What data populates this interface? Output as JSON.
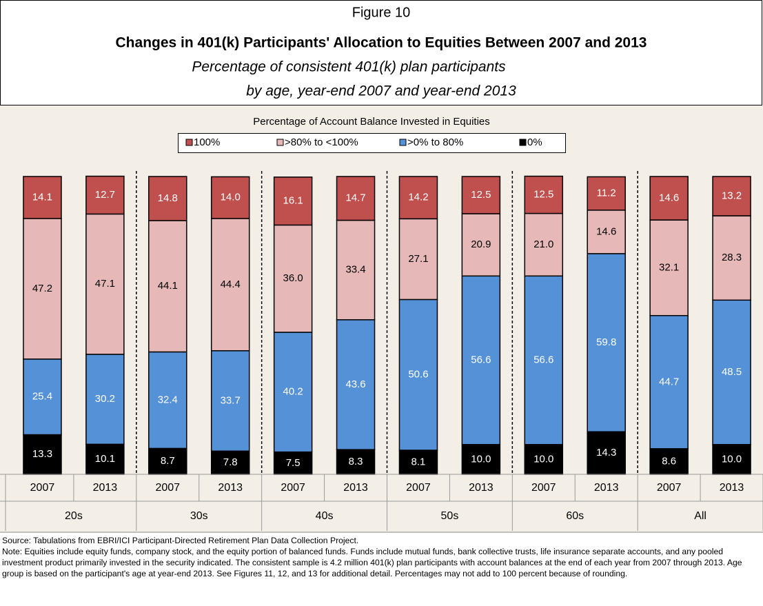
{
  "chart_data": {
    "type": "stacked_bar",
    "figure_label": "Figure 10",
    "title": "Changes in 401(k) Participants' Allocation to Equities Between 2007 and 2013",
    "subtitle": [
      "Percentage of consistent 401(k) plan participants",
      "by age, year-end 2007 and year-end 2013"
    ],
    "legend_title": "Percentage of Account Balance Invested in Equities",
    "categories": [
      "2007",
      "2013",
      "2007",
      "2013",
      "2007",
      "2013",
      "2007",
      "2013",
      "2007",
      "2013",
      "2007",
      "2013"
    ],
    "groups": [
      "20s",
      "30s",
      "40s",
      "50s",
      "60s",
      "All"
    ],
    "ylim": [
      0,
      100
    ],
    "series": [
      {
        "name": "100%",
        "color": "#c0504d",
        "label_color": "#ffffff",
        "values": [
          14.1,
          12.7,
          14.8,
          14.0,
          16.1,
          14.7,
          14.2,
          12.5,
          12.5,
          11.2,
          14.6,
          13.2
        ],
        "value_labels": [
          "14.1",
          "12.7",
          "14.8",
          "14.0",
          "16.1",
          "14.7",
          "14.2",
          "12.5",
          "12.5",
          "11.2",
          "14.6",
          "13.2"
        ]
      },
      {
        "name": ">80% to <100%",
        "color": "#e6b9b8",
        "label_color": "#000000",
        "values": [
          47.2,
          47.1,
          44.1,
          44.4,
          36.0,
          33.4,
          27.1,
          20.9,
          21.0,
          14.6,
          32.1,
          28.3
        ],
        "value_labels": [
          "47.2",
          "47.1",
          "44.1",
          "44.4",
          "36.0",
          "33.4",
          "27.1",
          "20.9",
          "21.0",
          "14.6",
          "32.1",
          "28.3"
        ]
      },
      {
        "name": ">0% to 80%",
        "color": "#5591d6",
        "label_color": "#ffffff",
        "values": [
          25.4,
          30.2,
          32.4,
          33.7,
          40.2,
          43.6,
          50.6,
          56.6,
          56.6,
          59.8,
          44.7,
          48.5
        ],
        "value_labels": [
          "25.4",
          "30.2",
          "32.4",
          "33.7",
          "40.2",
          "43.6",
          "50.6",
          "56.6",
          "56.6",
          "59.8",
          "44.7",
          "48.5"
        ]
      },
      {
        "name": "0%",
        "color": "#000000",
        "label_color": "#ffffff",
        "values": [
          13.3,
          10.1,
          8.7,
          7.8,
          7.5,
          8.3,
          8.1,
          10.0,
          10.0,
          14.3,
          8.6,
          10.0
        ],
        "value_labels": [
          "13.3",
          "10.1",
          "8.7",
          "7.8",
          "7.5",
          "8.3",
          "8.1",
          "10.0",
          "10.0",
          "14.3",
          "8.6",
          "10.0"
        ]
      }
    ],
    "source": "Source: Tabulations from EBRI/ICI Participant-Directed Retirement Plan Data Collection Project.",
    "note": "Note: Equities include equity funds, company stock, and the equity portion of balanced funds. Funds include mutual funds, bank collective trusts, life insurance separate accounts, and any pooled investment product primarily invested in the security indicated. The consistent sample is 4.2 million 401(k) plan participants with account balances at the end of each year from 2007 through 2013. Age group is based on the participant's age at year-end 2013. See Figures 11, 12, and 13 for additional detail. Percentages may not add to 100 percent because of rounding."
  }
}
